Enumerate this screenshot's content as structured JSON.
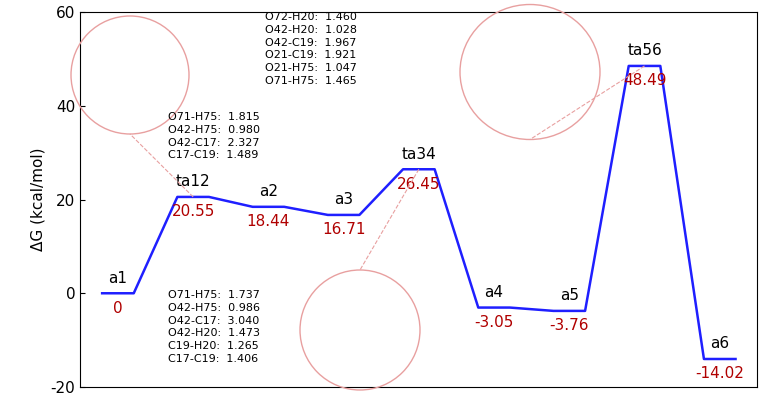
{
  "chart_data": {
    "type": "line",
    "y_label": "ΔG (kcal/mol)",
    "categories": [
      "a1",
      "ta12",
      "a2",
      "a3",
      "ta34",
      "a4",
      "a5",
      "ta56",
      "a6"
    ],
    "values": [
      0,
      20.55,
      18.44,
      16.71,
      26.45,
      -3.05,
      -3.76,
      48.49,
      -14.02
    ],
    "color": "#1f1fff",
    "data_labels": true,
    "ylim": [
      -20,
      60
    ],
    "yticks": [
      -20,
      0,
      20,
      40,
      60
    ],
    "tick_labels": "y",
    "annotations": [
      {
        "category": "ta12",
        "text": "O71-H75:  1.815\nO42-H75:  0.980\nO42-C17:  2.327\nC17-C19:  1.489"
      },
      {
        "category": "ta34",
        "text": "O71-H75:  1.737\nO42-H75:  0.986\nO42-C17:  3.040\nO42-H20:  1.473\nC19-H20:  1.265\nC17-C19:  1.406"
      },
      {
        "category": "ta56",
        "text": "O72-H20:  1.460\nO42-H20:  1.028\nO42-C19:  1.967\nO21-C19:  1.921\nO21-H75:  1.047\nO71-H75:  1.465"
      }
    ]
  }
}
